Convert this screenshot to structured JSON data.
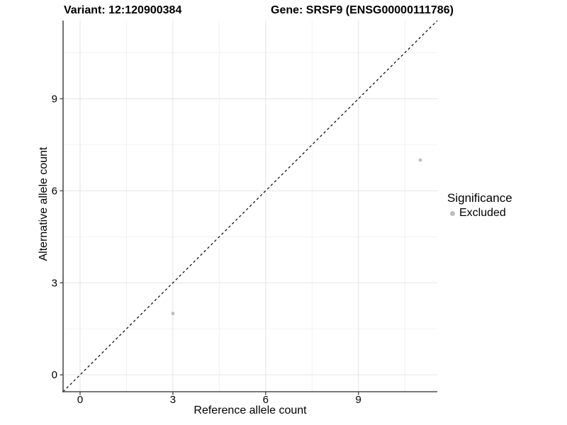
{
  "chart_data": {
    "type": "scatter",
    "title_left": "Variant: 12:120900384",
    "title_right": "Gene: SRSF9 (ENSG00000111786)",
    "xlabel": "Reference allele count",
    "ylabel": "Alternative allele count",
    "xlim": [
      -0.55,
      11.55
    ],
    "ylim": [
      -0.55,
      11.55
    ],
    "x_ticks": [
      0,
      3,
      6,
      9
    ],
    "y_ticks": [
      0,
      3,
      6,
      9
    ],
    "x_minor_ticks": [
      1.5,
      4.5,
      7.5,
      10.5
    ],
    "y_minor_ticks": [
      1.5,
      4.5,
      7.5,
      10.5
    ],
    "grid": true,
    "reference_line": {
      "name": "identity-line",
      "equation": "y = x",
      "style": "dashed"
    },
    "legend": {
      "title": "Significance",
      "position": "right",
      "items": [
        {
          "label": "Excluded",
          "color": "#bdbdbd"
        }
      ]
    },
    "series": [
      {
        "name": "Excluded",
        "color": "#bdbdbd",
        "points": [
          {
            "x": 3,
            "y": 2
          },
          {
            "x": 11,
            "y": 7
          }
        ]
      }
    ],
    "colors": {
      "point": "#bdbdbd",
      "axis_line": "#4d4d4d",
      "tick_mark": "#4d4d4d",
      "grid_major": "#e3e3e3",
      "grid_minor": "#f1f1f1",
      "dashed_line": "#000000",
      "text": "#000000"
    }
  }
}
